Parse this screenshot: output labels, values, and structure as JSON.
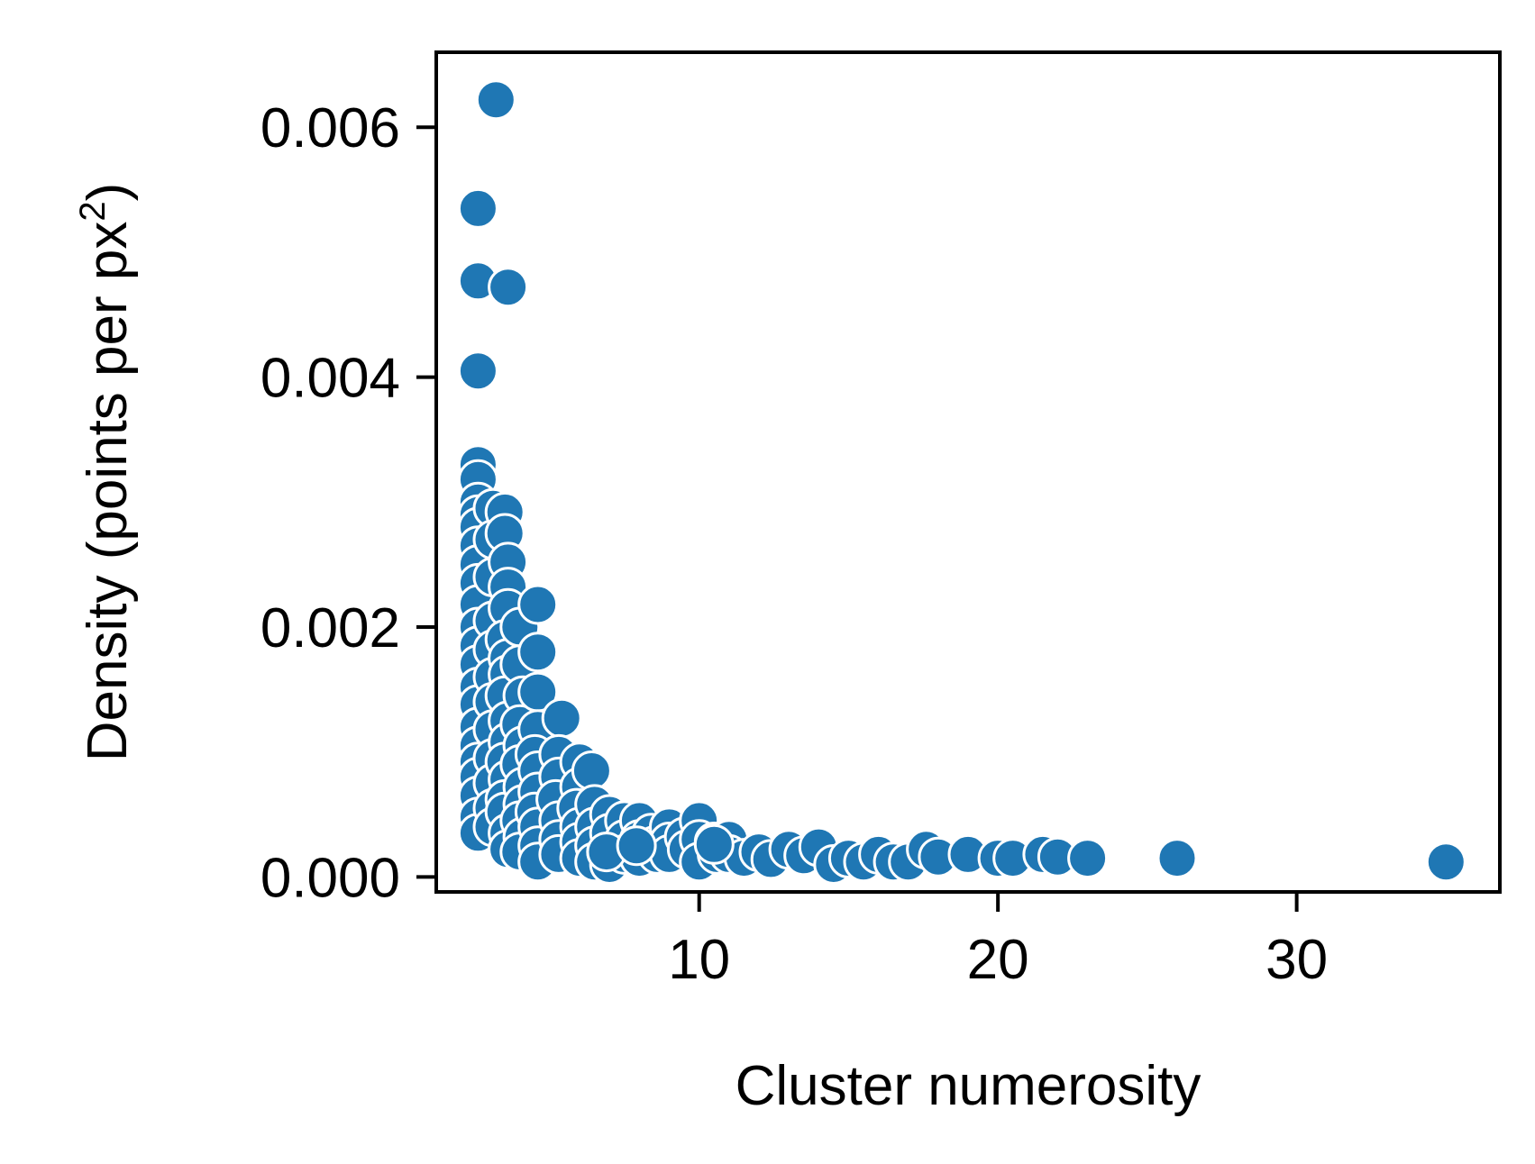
{
  "chart_data": {
    "type": "scatter",
    "xlabel": "Cluster numerosity",
    "ylabel_main": "Density (points per px",
    "ylabel_sup": "2",
    "ylabel_close": ")",
    "xlim": [
      1.2,
      36.8
    ],
    "ylim": [
      -0.00012,
      0.0066
    ],
    "xticks": [
      10,
      20,
      30
    ],
    "xtick_labels": [
      "10",
      "20",
      "30"
    ],
    "yticks": [
      0,
      0.002,
      0.004,
      0.006
    ],
    "ytick_labels": [
      "0.000",
      "0.002",
      "0.004",
      "0.006"
    ],
    "grid": false,
    "legend": "none",
    "colors": {
      "marker": "#1f77b4",
      "marker_edge": "#ffffff",
      "axis": "#000000"
    },
    "points": [
      [
        3.2,
        0.00622
      ],
      [
        2.6,
        0.00535
      ],
      [
        2.6,
        0.00477
      ],
      [
        3.6,
        0.00472
      ],
      [
        2.6,
        0.00405
      ],
      [
        2.6,
        0.0033
      ],
      [
        2.6,
        0.00318
      ],
      [
        2.6,
        0.003
      ],
      [
        2.6,
        0.0029
      ],
      [
        2.6,
        0.0028
      ],
      [
        2.6,
        0.00265
      ],
      [
        2.6,
        0.0025
      ],
      [
        2.6,
        0.00235
      ],
      [
        2.6,
        0.00218
      ],
      [
        2.6,
        0.002
      ],
      [
        2.6,
        0.00185
      ],
      [
        2.6,
        0.0017
      ],
      [
        2.6,
        0.00152
      ],
      [
        2.6,
        0.00138
      ],
      [
        2.6,
        0.0012
      ],
      [
        2.6,
        0.00105
      ],
      [
        2.6,
        0.00092
      ],
      [
        2.6,
        0.0008
      ],
      [
        2.6,
        0.00065
      ],
      [
        2.6,
        0.00048
      ],
      [
        2.6,
        0.00035
      ],
      [
        3.1,
        0.00295
      ],
      [
        3.1,
        0.0027
      ],
      [
        3.1,
        0.0024
      ],
      [
        3.1,
        0.00205
      ],
      [
        3.1,
        0.00182
      ],
      [
        3.1,
        0.0016
      ],
      [
        3.1,
        0.0014
      ],
      [
        3.1,
        0.00118
      ],
      [
        3.1,
        0.00095
      ],
      [
        3.1,
        0.00075
      ],
      [
        3.1,
        0.00055
      ],
      [
        3.1,
        0.0004
      ],
      [
        3.5,
        0.00292
      ],
      [
        3.5,
        0.00275
      ],
      [
        3.6,
        0.00252
      ],
      [
        3.6,
        0.00232
      ],
      [
        3.6,
        0.00215
      ],
      [
        3.5,
        0.0019
      ],
      [
        3.6,
        0.00175
      ],
      [
        3.6,
        0.00162
      ],
      [
        3.5,
        0.00145
      ],
      [
        3.6,
        0.00125
      ],
      [
        3.6,
        0.00108
      ],
      [
        3.5,
        0.00092
      ],
      [
        3.6,
        0.00078
      ],
      [
        3.5,
        0.00062
      ],
      [
        3.5,
        0.00052
      ],
      [
        3.6,
        0.00035
      ],
      [
        3.6,
        0.00022
      ],
      [
        4.0,
        0.002
      ],
      [
        4.0,
        0.0017
      ],
      [
        4.1,
        0.00145
      ],
      [
        4.0,
        0.00122
      ],
      [
        4.1,
        0.00105
      ],
      [
        4.0,
        0.0009
      ],
      [
        4.1,
        0.00072
      ],
      [
        4.1,
        0.00058
      ],
      [
        4.0,
        0.00045
      ],
      [
        4.1,
        0.00032
      ],
      [
        4.0,
        0.0002
      ],
      [
        4.6,
        0.00218
      ],
      [
        4.6,
        0.0018
      ],
      [
        4.6,
        0.00148
      ],
      [
        4.6,
        0.00118
      ],
      [
        4.5,
        0.00098
      ],
      [
        4.6,
        0.00085
      ],
      [
        4.6,
        0.00068
      ],
      [
        4.5,
        0.00052
      ],
      [
        4.6,
        0.0004
      ],
      [
        4.6,
        0.00025
      ],
      [
        4.6,
        0.00012
      ],
      [
        5.4,
        0.00127
      ],
      [
        5.3,
        0.00098
      ],
      [
        5.3,
        0.0008
      ],
      [
        5.2,
        0.00062
      ],
      [
        5.3,
        0.00045
      ],
      [
        5.3,
        0.0003
      ],
      [
        5.3,
        0.00018
      ],
      [
        6.0,
        0.00092
      ],
      [
        6.0,
        0.00072
      ],
      [
        5.9,
        0.00055
      ],
      [
        6.0,
        0.0004
      ],
      [
        6.0,
        0.00028
      ],
      [
        6.0,
        0.00015
      ],
      [
        6.4,
        0.00085
      ],
      [
        6.5,
        0.00058
      ],
      [
        6.5,
        0.0004
      ],
      [
        6.5,
        0.00025
      ],
      [
        6.5,
        0.00012
      ],
      [
        7.0,
        0.0005
      ],
      [
        7.0,
        0.00035
      ],
      [
        6.9,
        0.0002
      ],
      [
        7.0,
        0.0001
      ],
      [
        7.5,
        0.00045
      ],
      [
        7.5,
        0.0003
      ],
      [
        7.5,
        0.00018
      ],
      [
        8.0,
        0.00045
      ],
      [
        8.0,
        0.0003
      ],
      [
        8.0,
        0.00015
      ],
      [
        8.4,
        0.00035
      ],
      [
        8.5,
        0.00025
      ],
      [
        8.6,
        0.00018
      ],
      [
        9.0,
        0.0004
      ],
      [
        9.0,
        0.00028
      ],
      [
        9.0,
        0.00018
      ],
      [
        9.5,
        0.00032
      ],
      [
        9.6,
        0.00022
      ],
      [
        10.0,
        0.00045
      ],
      [
        10.0,
        0.0003
      ],
      [
        10.0,
        0.00012
      ],
      [
        10.5,
        0.00028
      ],
      [
        10.6,
        0.00018
      ],
      [
        11.0,
        0.0003
      ],
      [
        11.0,
        0.00018
      ],
      [
        11.5,
        0.00015
      ],
      [
        12.0,
        0.0002
      ],
      [
        12.4,
        0.00014
      ],
      [
        13.0,
        0.00022
      ],
      [
        13.5,
        0.00017
      ],
      [
        14.0,
        0.00024
      ],
      [
        14.5,
        0.0001
      ],
      [
        15.0,
        0.00015
      ],
      [
        15.5,
        0.00012
      ],
      [
        16.0,
        0.00018
      ],
      [
        16.5,
        0.00012
      ],
      [
        17.0,
        0.00012
      ],
      [
        17.6,
        0.00022
      ],
      [
        18.0,
        0.00016
      ],
      [
        19.0,
        0.00018
      ],
      [
        20.0,
        0.00015
      ],
      [
        20.5,
        0.00015
      ],
      [
        21.5,
        0.00018
      ],
      [
        22.0,
        0.00016
      ],
      [
        23.0,
        0.00015
      ],
      [
        26.0,
        0.00015
      ],
      [
        35.0,
        0.00012
      ],
      [
        6.9,
        0.0002
      ],
      [
        7.9,
        0.00025
      ],
      [
        10.5,
        0.00026
      ]
    ]
  }
}
